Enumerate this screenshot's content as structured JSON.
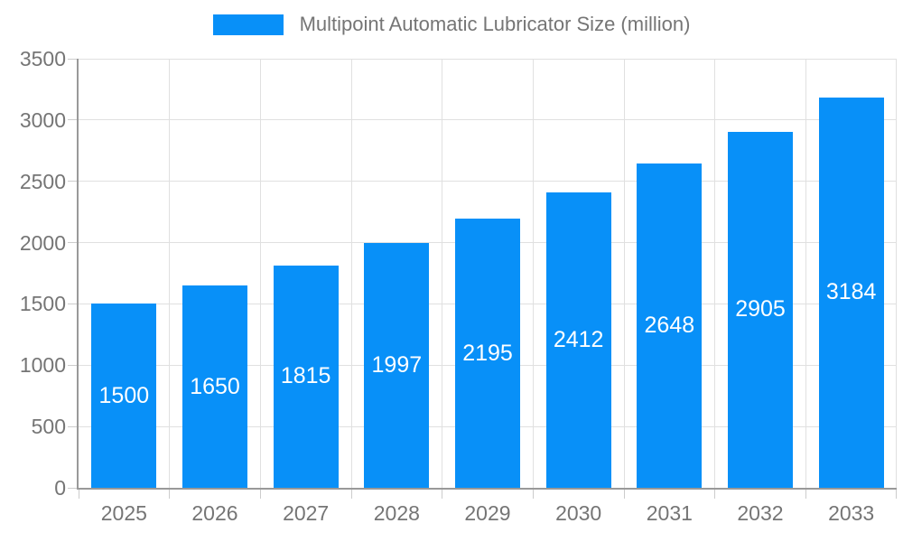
{
  "legend": {
    "label": "Multipoint Automatic Lubricator Size (million)"
  },
  "chart_data": {
    "type": "bar",
    "title": "Multipoint Automatic Lubricator Size (million)",
    "categories": [
      "2025",
      "2026",
      "2027",
      "2028",
      "2029",
      "2030",
      "2031",
      "2032",
      "2033"
    ],
    "series": [
      {
        "name": "Multipoint Automatic Lubricator Size (million)",
        "values": [
          1500,
          1650,
          1815,
          1997,
          2195,
          2412,
          2648,
          2905,
          3184
        ]
      }
    ],
    "xlabel": "",
    "ylabel": "",
    "ylim": [
      0,
      3500
    ],
    "y_ticks": [
      0,
      500,
      1000,
      1500,
      2000,
      2500,
      3000,
      3500
    ],
    "grid": true,
    "legend_position": "top-center",
    "bar_value_labels": "inside-center"
  },
  "colors": {
    "bar": "#0890F8",
    "grid": "#e0e0e0",
    "axis": "#999999",
    "tick": "#cccccc",
    "text": "#757575",
    "bar_label": "#ffffff",
    "background": "#ffffff"
  }
}
